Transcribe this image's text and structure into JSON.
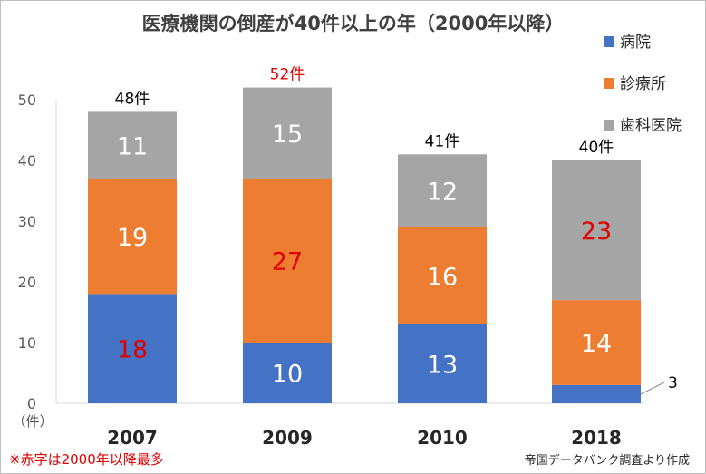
{
  "title": "医療機関の倒産が40件以上の年（2000年以降）",
  "footnote": "※赤字は2000年以降最多",
  "source": "帝国データバンク調査より作成",
  "colors": {
    "hospital": "#4472C4",
    "clinic": "#ED7D31",
    "dental": "#A5A5A5",
    "highlight": "#E00000",
    "normal_total": "#000000",
    "axis_text": "#595959"
  },
  "chart_data": {
    "type": "bar",
    "stacked": true,
    "categories": [
      "2007",
      "2009",
      "2010",
      "2018"
    ],
    "series": [
      {
        "name": "病院",
        "color": "#4472C4",
        "values": [
          18,
          10,
          13,
          3
        ]
      },
      {
        "name": "診療所",
        "color": "#ED7D31",
        "values": [
          19,
          27,
          16,
          14
        ]
      },
      {
        "name": "歯科医院",
        "color": "#A5A5A5",
        "values": [
          11,
          15,
          12,
          23
        ]
      }
    ],
    "value_labels": [
      [
        "18",
        "10",
        "13",
        "3"
      ],
      [
        "19",
        "27",
        "16",
        "14"
      ],
      [
        "11",
        "15",
        "12",
        "23"
      ]
    ],
    "highlight": [
      [
        true,
        false,
        false,
        false
      ],
      [
        false,
        true,
        false,
        false
      ],
      [
        false,
        false,
        false,
        true
      ]
    ],
    "total_labels": [
      "48件",
      "52件",
      "41件",
      "40件"
    ],
    "total_highlight": [
      false,
      true,
      false,
      false
    ],
    "ylabel": "（件）",
    "ylim": [
      0,
      50
    ],
    "yticks": [
      0,
      10,
      20,
      30,
      40,
      50
    ],
    "legend_position": "right"
  }
}
